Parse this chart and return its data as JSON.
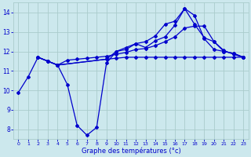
{
  "xlabel": "Graphe des températures (°c)",
  "bg_color": "#cce8ed",
  "grid_color": "#aacccc",
  "line_color": "#0000cc",
  "xlim": [
    -0.5,
    23.5
  ],
  "ylim": [
    7.5,
    14.5
  ],
  "yticks": [
    8,
    9,
    10,
    11,
    12,
    13,
    14
  ],
  "xticks": [
    0,
    1,
    2,
    3,
    4,
    5,
    6,
    7,
    8,
    9,
    10,
    11,
    12,
    13,
    14,
    15,
    16,
    17,
    18,
    19,
    20,
    21,
    22,
    23
  ],
  "line1_x": [
    0,
    1,
    2,
    3,
    4,
    5,
    6,
    7,
    8,
    9,
    10,
    11,
    12,
    13,
    14,
    15,
    16,
    17,
    18,
    19,
    20,
    21,
    22,
    23
  ],
  "line1_y": [
    9.9,
    10.7,
    11.7,
    11.5,
    11.3,
    10.3,
    8.2,
    7.7,
    8.1,
    11.4,
    12.0,
    12.2,
    12.4,
    12.5,
    12.8,
    13.4,
    13.55,
    14.2,
    13.85,
    12.65,
    12.1,
    12.0,
    11.9,
    11.7
  ],
  "line2_x": [
    2,
    3,
    4,
    5,
    6,
    7,
    8,
    9,
    10,
    11,
    12,
    13,
    14,
    15,
    16,
    17,
    18,
    19,
    20,
    21,
    22,
    23
  ],
  "line2_y": [
    11.7,
    11.5,
    11.3,
    11.55,
    11.6,
    11.65,
    11.7,
    11.75,
    11.85,
    11.95,
    12.1,
    12.15,
    12.3,
    12.5,
    12.75,
    13.2,
    13.3,
    13.3,
    12.5,
    12.05,
    11.85,
    11.7
  ],
  "line3_x": [
    2,
    3,
    4,
    9,
    10,
    11,
    12,
    13,
    14,
    15,
    16,
    17,
    18,
    19,
    20,
    21,
    22,
    23
  ],
  "line3_y": [
    11.7,
    11.5,
    11.3,
    11.6,
    12.0,
    12.1,
    12.4,
    12.2,
    12.55,
    12.75,
    13.35,
    14.2,
    13.4,
    12.7,
    12.5,
    12.0,
    11.9,
    11.7
  ],
  "line4_x": [
    2,
    3,
    4,
    9,
    10,
    11,
    12,
    13,
    14,
    15,
    16,
    17,
    18,
    19,
    20,
    21,
    22,
    23
  ],
  "line4_y": [
    11.7,
    11.5,
    11.3,
    11.6,
    11.65,
    11.7,
    11.7,
    11.7,
    11.7,
    11.7,
    11.7,
    11.7,
    11.7,
    11.7,
    11.7,
    11.7,
    11.7,
    11.7
  ]
}
